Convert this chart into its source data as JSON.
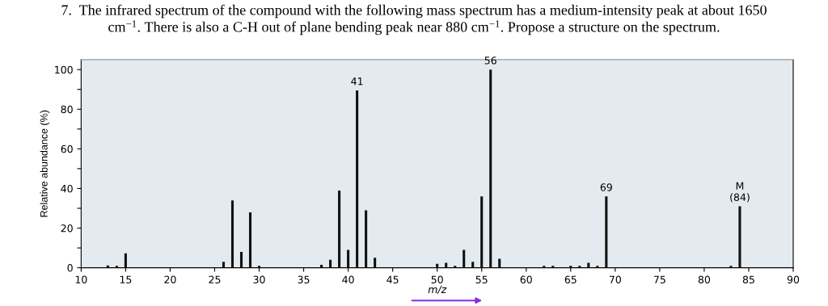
{
  "chart_data": {
    "type": "bar",
    "title": "7.  The infrared spectrum of the compound with the following mass spectrum has a medium-intensity peak at about 1650\ncm$^{−1}$. There is also a C-H out of plane bending peak near 880 cm$^{−1}$. Propose a structure on the spectrum.",
    "xlabel": "m/z",
    "ylabel": "Relative abundance (%)",
    "x": [
      13,
      14,
      15,
      26,
      27,
      28,
      29,
      30,
      37,
      38,
      39,
      40,
      41,
      42,
      43,
      50,
      51,
      52,
      53,
      54,
      55,
      56,
      57,
      62,
      63,
      65,
      66,
      67,
      68,
      69,
      83,
      84
    ],
    "values": [
      1.2,
      1,
      7.3,
      3,
      34,
      8,
      28,
      1,
      1.5,
      4,
      39,
      9,
      89.5,
      29,
      5,
      2,
      2.5,
      1,
      9,
      3,
      36,
      100,
      4.5,
      1,
      1,
      1,
      1,
      2.5,
      1,
      36,
      1,
      31
    ],
    "color": "#111111",
    "xlim": [
      10,
      90
    ],
    "xticks": [
      10,
      15,
      20,
      25,
      30,
      35,
      40,
      45,
      50,
      55,
      60,
      65,
      70,
      75,
      80,
      85,
      90
    ],
    "ylim": [
      0,
      105
    ],
    "yticks": [
      0,
      {
        "value": 10,
        "label": null
      },
      20,
      {
        "value": 30,
        "label": null
      },
      40,
      {
        "value": 50,
        "label": null
      },
      60,
      {
        "value": 70,
        "label": null
      },
      80,
      {
        "value": 90,
        "label": null
      },
      100
    ],
    "annotations": [
      {
        "text": "41",
        "x": 41,
        "y": 89.5
      },
      {
        "text": "56",
        "x": 56,
        "y": 100
      },
      {
        "text": "69",
        "x": 69,
        "y": 36
      },
      {
        "text": "M\n(84)",
        "x": 84,
        "y": 31
      }
    ],
    "grid": false,
    "legend": false
  }
}
